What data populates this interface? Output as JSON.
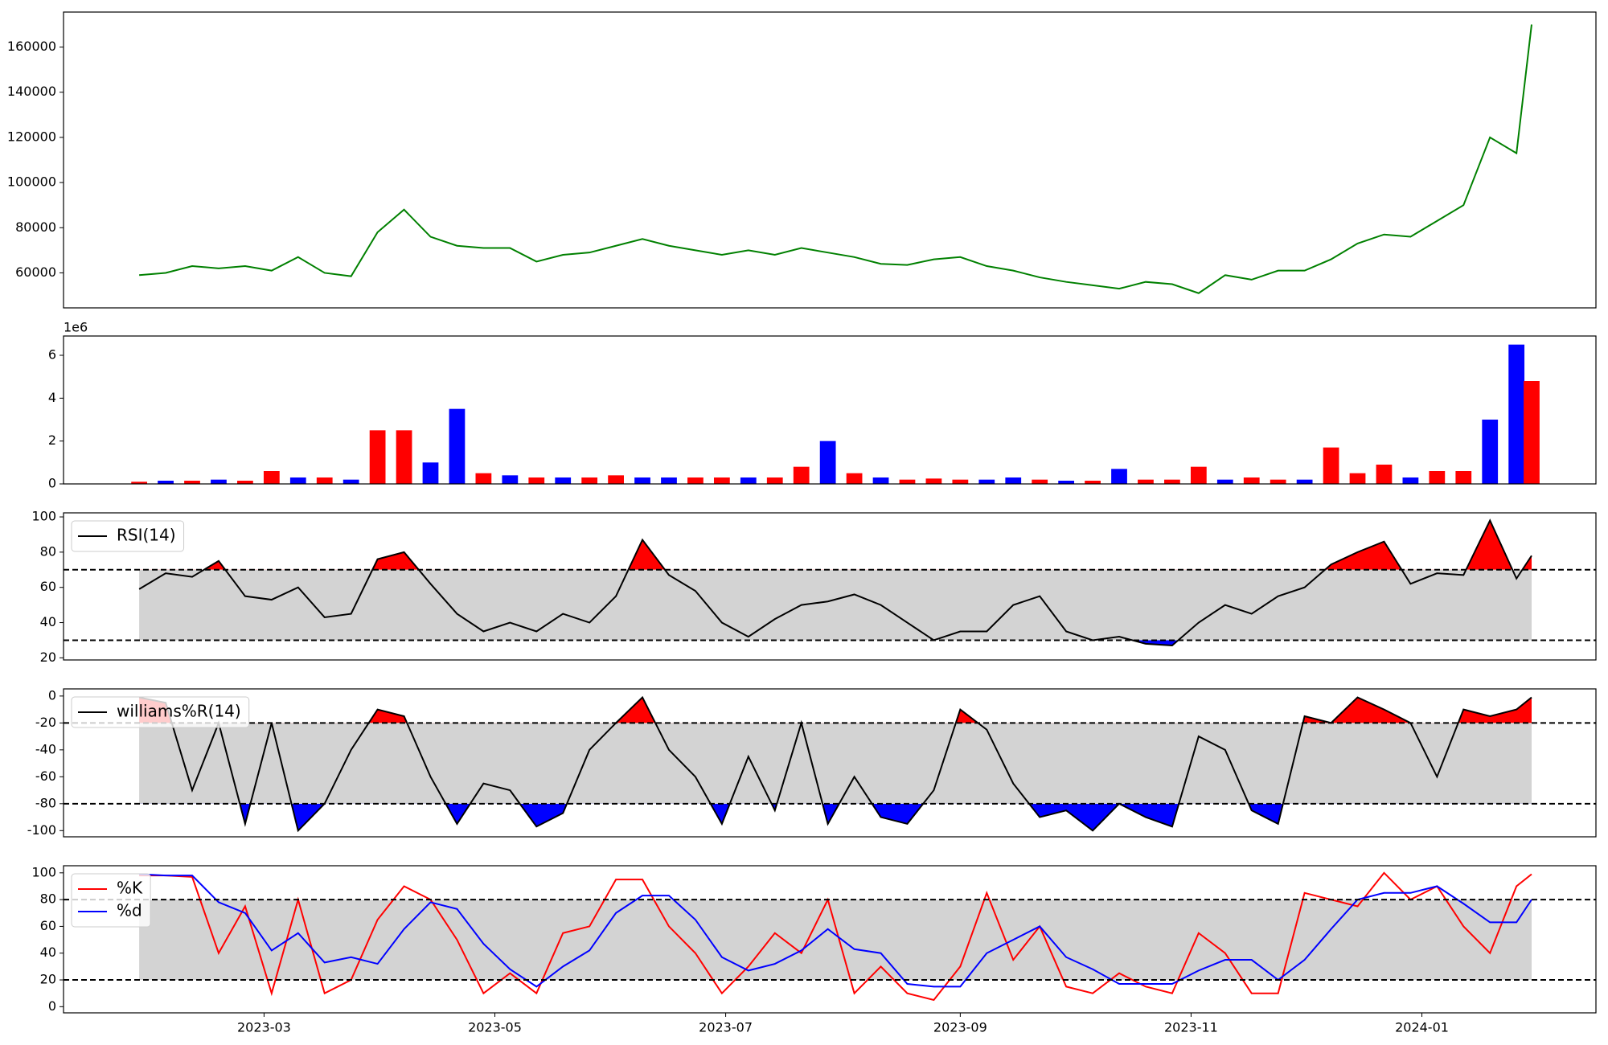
{
  "chart_data": [
    {
      "type": "line",
      "color": "green",
      "x": [
        "2023-01-27",
        "2023-02-03",
        "2023-02-10",
        "2023-02-17",
        "2023-02-24",
        "2023-03-03",
        "2023-03-10",
        "2023-03-17",
        "2023-03-24",
        "2023-03-31",
        "2023-04-07",
        "2023-04-14",
        "2023-04-21",
        "2023-04-28",
        "2023-05-05",
        "2023-05-12",
        "2023-05-19",
        "2023-05-26",
        "2023-06-02",
        "2023-06-09",
        "2023-06-16",
        "2023-06-23",
        "2023-06-30",
        "2023-07-07",
        "2023-07-14",
        "2023-07-21",
        "2023-07-28",
        "2023-08-04",
        "2023-08-11",
        "2023-08-18",
        "2023-08-25",
        "2023-09-01",
        "2023-09-08",
        "2023-09-15",
        "2023-09-22",
        "2023-09-29",
        "2023-10-06",
        "2023-10-13",
        "2023-10-20",
        "2023-10-27",
        "2023-11-03",
        "2023-11-10",
        "2023-11-17",
        "2023-11-24",
        "2023-12-01",
        "2023-12-08",
        "2023-12-15",
        "2023-12-22",
        "2023-12-29",
        "2024-01-05",
        "2024-01-12",
        "2024-01-19",
        "2024-01-26",
        "2024-01-30"
      ],
      "values": [
        59000,
        60000,
        63000,
        62000,
        63000,
        61000,
        67000,
        60000,
        58500,
        78000,
        88000,
        76000,
        72000,
        71000,
        71000,
        65000,
        68000,
        69000,
        72000,
        75000,
        72000,
        70000,
        68000,
        70000,
        68000,
        71000,
        69000,
        67000,
        64000,
        63500,
        66000,
        67000,
        63000,
        61000,
        58000,
        56000,
        54500,
        53000,
        56000,
        55000,
        51000,
        59000,
        57000,
        61000,
        61000,
        66000,
        73000,
        77000,
        76000,
        83000,
        90000,
        120000,
        113000,
        170000
      ],
      "xlim": [
        "2023-01-07",
        "2024-02-16"
      ],
      "ylim": [
        44500,
        175500
      ],
      "yticks": [
        60000,
        80000,
        100000,
        120000,
        140000,
        160000
      ]
    },
    {
      "type": "bar",
      "x": [
        "2023-01-27",
        "2023-02-03",
        "2023-02-10",
        "2023-02-17",
        "2023-02-24",
        "2023-03-03",
        "2023-03-10",
        "2023-03-17",
        "2023-03-24",
        "2023-03-31",
        "2023-04-07",
        "2023-04-14",
        "2023-04-21",
        "2023-04-28",
        "2023-05-05",
        "2023-05-12",
        "2023-05-19",
        "2023-05-26",
        "2023-06-02",
        "2023-06-09",
        "2023-06-16",
        "2023-06-23",
        "2023-06-30",
        "2023-07-07",
        "2023-07-14",
        "2023-07-21",
        "2023-07-28",
        "2023-08-04",
        "2023-08-11",
        "2023-08-18",
        "2023-08-25",
        "2023-09-01",
        "2023-09-08",
        "2023-09-15",
        "2023-09-22",
        "2023-09-29",
        "2023-10-06",
        "2023-10-13",
        "2023-10-20",
        "2023-10-27",
        "2023-11-03",
        "2023-11-10",
        "2023-11-17",
        "2023-11-24",
        "2023-12-01",
        "2023-12-08",
        "2023-12-15",
        "2023-12-22",
        "2023-12-29",
        "2024-01-05",
        "2024-01-12",
        "2024-01-19",
        "2024-01-26",
        "2024-01-30"
      ],
      "values": [
        100000,
        150000,
        150000,
        200000,
        150000,
        600000,
        300000,
        300000,
        200000,
        2500000,
        2500000,
        1000000,
        3500000,
        500000,
        400000,
        300000,
        300000,
        300000,
        400000,
        300000,
        300000,
        300000,
        300000,
        300000,
        300000,
        800000,
        2000000,
        500000,
        300000,
        200000,
        250000,
        200000,
        200000,
        300000,
        200000,
        150000,
        150000,
        700000,
        200000,
        200000,
        800000,
        200000,
        300000,
        200000,
        200000,
        1700000,
        500000,
        900000,
        300000,
        600000,
        600000,
        3000000,
        6500000,
        4800000
      ],
      "colors": [
        "red",
        "blue",
        "red",
        "blue",
        "red",
        "red",
        "blue",
        "red",
        "blue",
        "red",
        "red",
        "blue",
        "blue",
        "red",
        "blue",
        "red",
        "blue",
        "red",
        "red",
        "blue",
        "blue",
        "red",
        "red",
        "blue",
        "red",
        "red",
        "blue",
        "red",
        "blue",
        "red",
        "red",
        "red",
        "blue",
        "blue",
        "red",
        "blue",
        "red",
        "blue",
        "red",
        "red",
        "red",
        "blue",
        "red",
        "red",
        "blue",
        "red",
        "red",
        "red",
        "blue",
        "red",
        "red",
        "blue",
        "blue",
        "red"
      ],
      "xlim": [
        "2023-01-07",
        "2024-02-16"
      ],
      "ylim": [
        0,
        6900000
      ],
      "yticks": [
        {
          "value": 0,
          "label": "0"
        },
        {
          "value": 2000000,
          "label": "2"
        },
        {
          "value": 4000000,
          "label": "4"
        },
        {
          "value": 6000000,
          "label": "6"
        }
      ],
      "offset_label": "1e6"
    },
    {
      "type": "line",
      "x": [
        "2023-01-27",
        "2023-02-03",
        "2023-02-10",
        "2023-02-17",
        "2023-02-24",
        "2023-03-03",
        "2023-03-10",
        "2023-03-17",
        "2023-03-24",
        "2023-03-31",
        "2023-04-07",
        "2023-04-14",
        "2023-04-21",
        "2023-04-28",
        "2023-05-05",
        "2023-05-12",
        "2023-05-19",
        "2023-05-26",
        "2023-06-02",
        "2023-06-09",
        "2023-06-16",
        "2023-06-23",
        "2023-06-30",
        "2023-07-07",
        "2023-07-14",
        "2023-07-21",
        "2023-07-28",
        "2023-08-04",
        "2023-08-11",
        "2023-08-18",
        "2023-08-25",
        "2023-09-01",
        "2023-09-08",
        "2023-09-15",
        "2023-09-22",
        "2023-09-29",
        "2023-10-06",
        "2023-10-13",
        "2023-10-20",
        "2023-10-27",
        "2023-11-03",
        "2023-11-10",
        "2023-11-17",
        "2023-11-24",
        "2023-12-01",
        "2023-12-08",
        "2023-12-15",
        "2023-12-22",
        "2023-12-29",
        "2024-01-05",
        "2024-01-12",
        "2024-01-19",
        "2024-01-26",
        "2024-01-30"
      ],
      "series": [
        {
          "name": "RSI(14)",
          "color": "black",
          "values": [
            59,
            68,
            66,
            75,
            55,
            53,
            60,
            43,
            45,
            76,
            80,
            62,
            45,
            35,
            40,
            35,
            45,
            40,
            55,
            87,
            67,
            58,
            40,
            32,
            42,
            50,
            52,
            56,
            50,
            40,
            30,
            35,
            35,
            50,
            55,
            35,
            30,
            32,
            28,
            27,
            40,
            50,
            45,
            55,
            60,
            73,
            80,
            86,
            62,
            68,
            67,
            98,
            65,
            78
          ]
        }
      ],
      "thresholds": [
        30,
        70
      ],
      "band_color": "lightgray",
      "fill_above_color": "red",
      "fill_below_color": "blue",
      "xlim": [
        "2023-01-07",
        "2024-02-16"
      ],
      "ylim": [
        18.8,
        102.3
      ],
      "yticks": [
        20,
        40,
        60,
        80,
        100
      ],
      "legend": "upper left"
    },
    {
      "type": "line",
      "x": [
        "2023-01-27",
        "2023-02-03",
        "2023-02-10",
        "2023-02-17",
        "2023-02-24",
        "2023-03-03",
        "2023-03-10",
        "2023-03-17",
        "2023-03-24",
        "2023-03-31",
        "2023-04-07",
        "2023-04-14",
        "2023-04-21",
        "2023-04-28",
        "2023-05-05",
        "2023-05-12",
        "2023-05-19",
        "2023-05-26",
        "2023-06-02",
        "2023-06-09",
        "2023-06-16",
        "2023-06-23",
        "2023-06-30",
        "2023-07-07",
        "2023-07-14",
        "2023-07-21",
        "2023-07-28",
        "2023-08-04",
        "2023-08-11",
        "2023-08-18",
        "2023-08-25",
        "2023-09-01",
        "2023-09-08",
        "2023-09-15",
        "2023-09-22",
        "2023-09-29",
        "2023-10-06",
        "2023-10-13",
        "2023-10-20",
        "2023-10-27",
        "2023-11-03",
        "2023-11-10",
        "2023-11-17",
        "2023-11-24",
        "2023-12-01",
        "2023-12-08",
        "2023-12-15",
        "2023-12-22",
        "2023-12-29",
        "2024-01-05",
        "2024-01-12",
        "2024-01-19",
        "2024-01-26",
        "2024-01-30"
      ],
      "series": [
        {
          "name": "williams%R(14)",
          "color": "black",
          "values": [
            -1,
            -5,
            -70,
            -20,
            -95,
            -20,
            -100,
            -80,
            -40,
            -10,
            -15,
            -60,
            -95,
            -65,
            -70,
            -97,
            -87,
            -40,
            -20,
            -1,
            -40,
            -60,
            -95,
            -45,
            -85,
            -20,
            -95,
            -60,
            -90,
            -95,
            -70,
            -10,
            -25,
            -65,
            -90,
            -85,
            -100,
            -80,
            -90,
            -97,
            -30,
            -40,
            -85,
            -95,
            -15,
            -20,
            -1,
            -10,
            -20,
            -60,
            -10,
            -15,
            -10,
            -1
          ]
        }
      ],
      "thresholds": [
        -80,
        -20
      ],
      "band_color": "lightgray",
      "fill_above_color": "red",
      "fill_below_color": "blue",
      "xlim": [
        "2023-01-07",
        "2024-02-16"
      ],
      "ylim": [
        -104.6,
        5.3
      ],
      "yticks": [
        -100,
        -80,
        -60,
        -40,
        -20,
        0
      ],
      "legend": "upper left"
    },
    {
      "type": "line",
      "x": [
        "2023-01-27",
        "2023-02-03",
        "2023-02-10",
        "2023-02-17",
        "2023-02-24",
        "2023-03-03",
        "2023-03-10",
        "2023-03-17",
        "2023-03-24",
        "2023-03-31",
        "2023-04-07",
        "2023-04-14",
        "2023-04-21",
        "2023-04-28",
        "2023-05-05",
        "2023-05-12",
        "2023-05-19",
        "2023-05-26",
        "2023-06-02",
        "2023-06-09",
        "2023-06-16",
        "2023-06-23",
        "2023-06-30",
        "2023-07-07",
        "2023-07-14",
        "2023-07-21",
        "2023-07-28",
        "2023-08-04",
        "2023-08-11",
        "2023-08-18",
        "2023-08-25",
        "2023-09-01",
        "2023-09-08",
        "2023-09-15",
        "2023-09-22",
        "2023-09-29",
        "2023-10-06",
        "2023-10-13",
        "2023-10-20",
        "2023-10-27",
        "2023-11-03",
        "2023-11-10",
        "2023-11-17",
        "2023-11-24",
        "2023-12-01",
        "2023-12-08",
        "2023-12-15",
        "2023-12-22",
        "2023-12-29",
        "2024-01-05",
        "2024-01-12",
        "2024-01-19",
        "2024-01-26",
        "2024-01-30"
      ],
      "series": [
        {
          "name": "%K",
          "color": "red",
          "values": [
            98,
            98,
            97,
            40,
            75,
            10,
            80,
            10,
            20,
            65,
            90,
            80,
            50,
            10,
            25,
            10,
            55,
            60,
            95,
            95,
            60,
            40,
            10,
            30,
            55,
            40,
            80,
            10,
            30,
            10,
            5,
            30,
            85,
            35,
            60,
            15,
            10,
            25,
            15,
            10,
            55,
            40,
            10,
            10,
            85,
            80,
            75,
            100,
            80,
            90,
            60,
            40,
            90,
            99
          ]
        },
        {
          "name": "%d",
          "color": "blue",
          "values": [
            99,
            98,
            98,
            78,
            70,
            42,
            55,
            33,
            37,
            32,
            58,
            78,
            73,
            47,
            28,
            15,
            30,
            42,
            70,
            83,
            83,
            65,
            37,
            27,
            32,
            42,
            58,
            43,
            40,
            17,
            15,
            15,
            40,
            50,
            60,
            37,
            28,
            17,
            17,
            17,
            27,
            35,
            35,
            20,
            35,
            58,
            80,
            85,
            85,
            90,
            77,
            63,
            63,
            80
          ]
        }
      ],
      "thresholds": [
        20,
        80
      ],
      "band_color": "lightgray",
      "xlim": [
        "2023-01-07",
        "2024-02-16"
      ],
      "ylim": [
        -4.6,
        105.3
      ],
      "yticks": [
        0,
        20,
        40,
        60,
        80,
        100
      ],
      "legend": "upper left",
      "xticks": [
        {
          "value": "2023-03-01",
          "label": "2023-03"
        },
        {
          "value": "2023-05-01",
          "label": "2023-05"
        },
        {
          "value": "2023-07-01",
          "label": "2023-07"
        },
        {
          "value": "2023-09-01",
          "label": "2023-09"
        },
        {
          "value": "2023-11-01",
          "label": "2023-11"
        },
        {
          "value": "2024-01-01",
          "label": "2024-01"
        }
      ]
    }
  ]
}
